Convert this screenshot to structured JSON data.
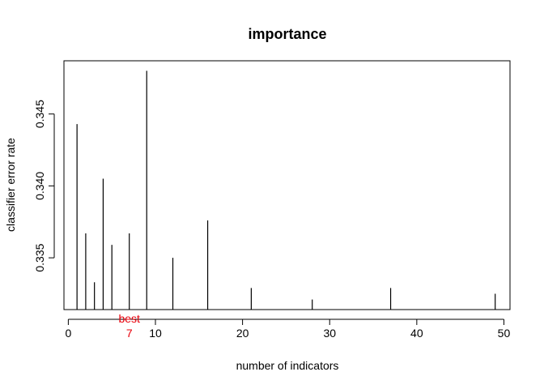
{
  "chart_data": {
    "type": "bar",
    "title": "importance",
    "xlabel": "number of indicators",
    "ylabel": "classifier error rate",
    "x": [
      1,
      2,
      3,
      4,
      5,
      7,
      9,
      12,
      16,
      21,
      28,
      37,
      49
    ],
    "values": [
      0.3443,
      0.3367,
      0.3333,
      0.3405,
      0.3359,
      0.3367,
      0.348,
      0.335,
      0.3376,
      0.3329,
      0.3321,
      0.3329,
      0.3325
    ],
    "xlim": [
      -0.5,
      50.7
    ],
    "ylim": [
      0.3314,
      0.3487
    ],
    "xticks": [
      0,
      10,
      20,
      30,
      40,
      50
    ],
    "xtick_labels": [
      "0",
      "10",
      "20",
      "30",
      "40",
      "50"
    ],
    "yticks": [
      0.335,
      0.34,
      0.345
    ],
    "ytick_labels": [
      "0.335",
      "0.340",
      "0.345"
    ],
    "best": {
      "x": 7,
      "label": "best",
      "value_label": "7",
      "color": "#e8000b"
    },
    "bar_color": "#000000",
    "grid": false,
    "legend": "none"
  }
}
